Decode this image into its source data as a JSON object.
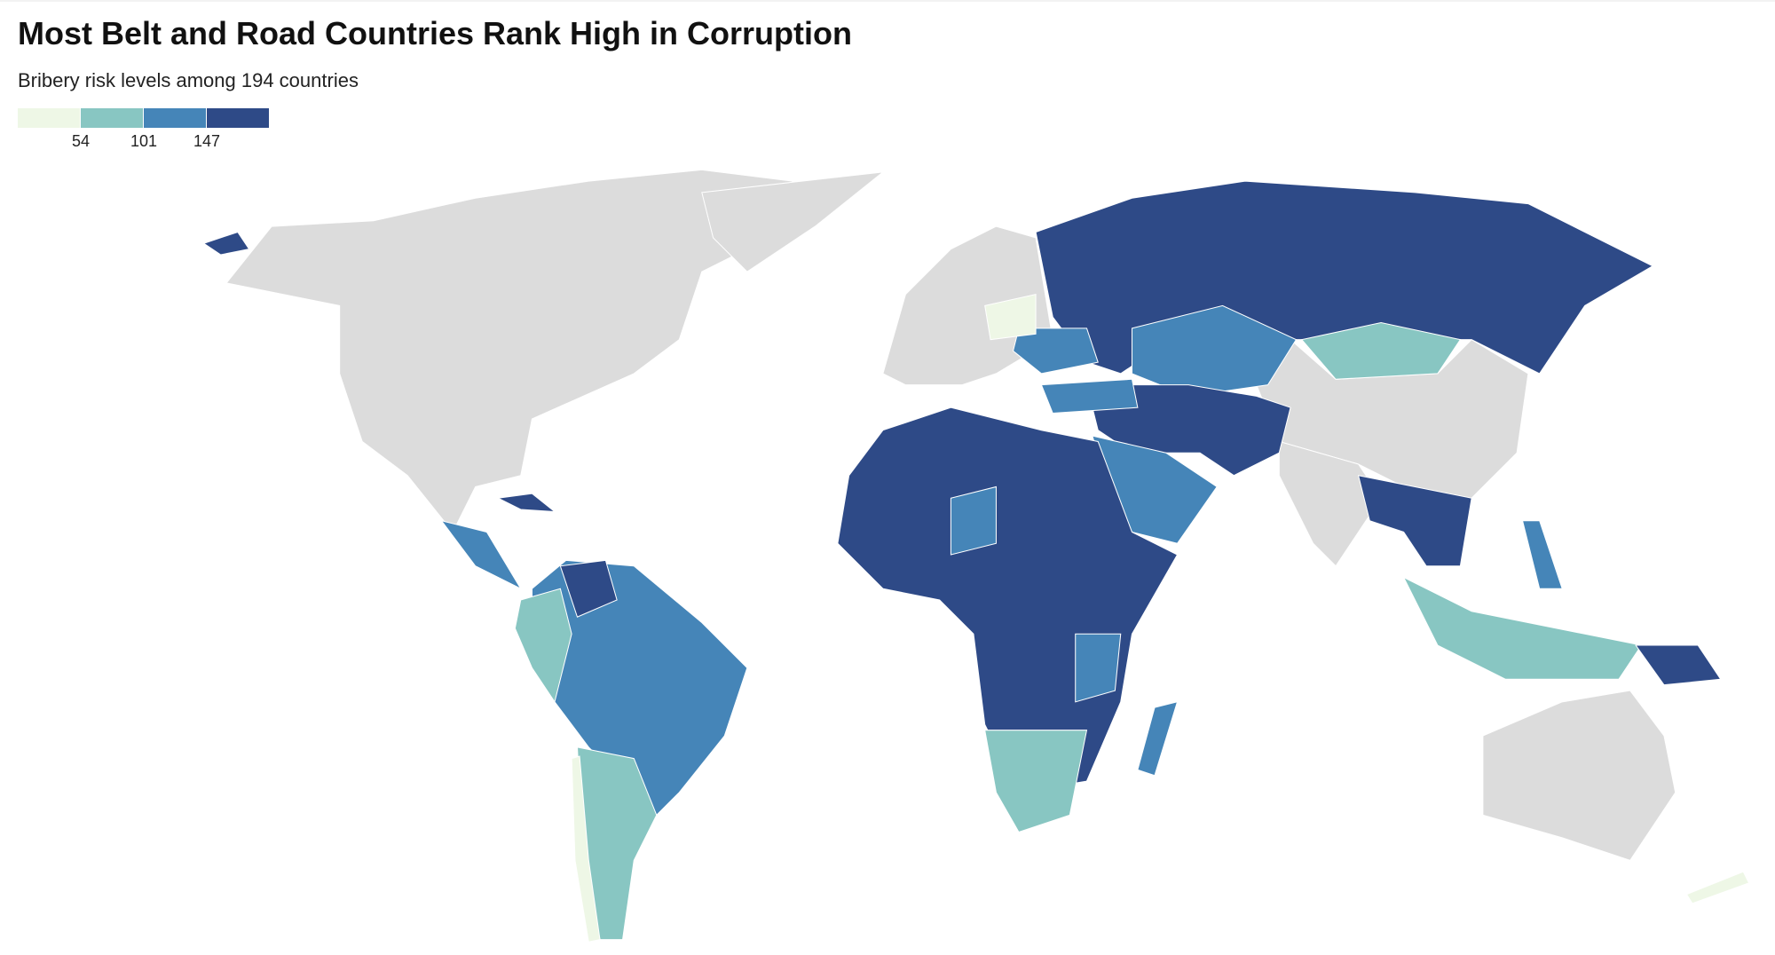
{
  "header": {
    "title": "Most Belt and Road Countries Rank High in Corruption",
    "subtitle": "Bribery risk levels among 194 countries"
  },
  "legend": {
    "colors": [
      "#eef7e6",
      "#88c6c2",
      "#4585b8",
      "#2e4a87"
    ],
    "thresholds": [
      54,
      101,
      147
    ]
  }
}
